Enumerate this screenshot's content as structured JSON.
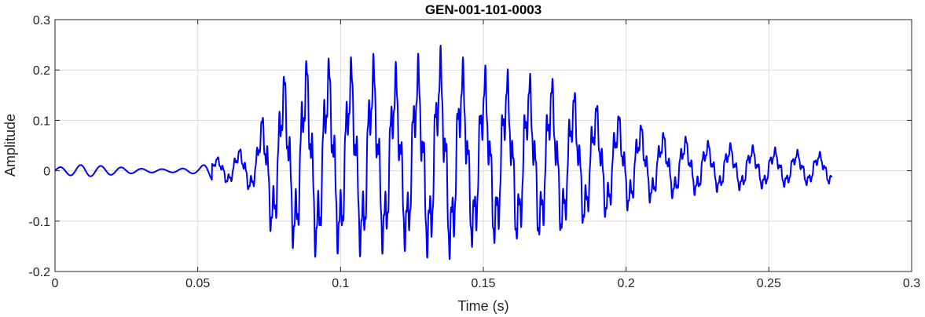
{
  "chart_data": {
    "type": "line",
    "title": "GEN-001-101-0003",
    "xlabel": "Time (s)",
    "ylabel": "Amplitude",
    "xlim": [
      0,
      0.3
    ],
    "ylim": [
      -0.2,
      0.3
    ],
    "grid": true,
    "legend": "none",
    "x_ticks": [
      "0",
      "0.05",
      "0.1",
      "0.15",
      "0.2",
      "0.25",
      "0.3"
    ],
    "y_ticks": [
      "-0.2",
      "-0.1",
      "0",
      "0.1",
      "0.2",
      "0.3"
    ],
    "series": [
      {
        "color": "#0000ff",
        "duration": 0.272,
        "envelope": [
          [
            0.0,
            0.006
          ],
          [
            0.01,
            0.012
          ],
          [
            0.02,
            0.008
          ],
          [
            0.03,
            0.004
          ],
          [
            0.04,
            0.003
          ],
          [
            0.05,
            0.006
          ],
          [
            0.056,
            0.022
          ],
          [
            0.063,
            0.035
          ],
          [
            0.07,
            0.05
          ],
          [
            0.075,
            0.14
          ],
          [
            0.08,
            0.17
          ],
          [
            0.09,
            0.2
          ],
          [
            0.1,
            0.19
          ],
          [
            0.11,
            0.2
          ],
          [
            0.12,
            0.18
          ],
          [
            0.13,
            0.2
          ],
          [
            0.137,
            0.21
          ],
          [
            0.145,
            0.18
          ],
          [
            0.16,
            0.17
          ],
          [
            0.175,
            0.16
          ],
          [
            0.185,
            0.13
          ],
          [
            0.2,
            0.095
          ],
          [
            0.21,
            0.07
          ],
          [
            0.22,
            0.06
          ],
          [
            0.23,
            0.05
          ],
          [
            0.24,
            0.045
          ],
          [
            0.25,
            0.04
          ],
          [
            0.26,
            0.035
          ],
          [
            0.272,
            0.03
          ]
        ]
      }
    ]
  }
}
